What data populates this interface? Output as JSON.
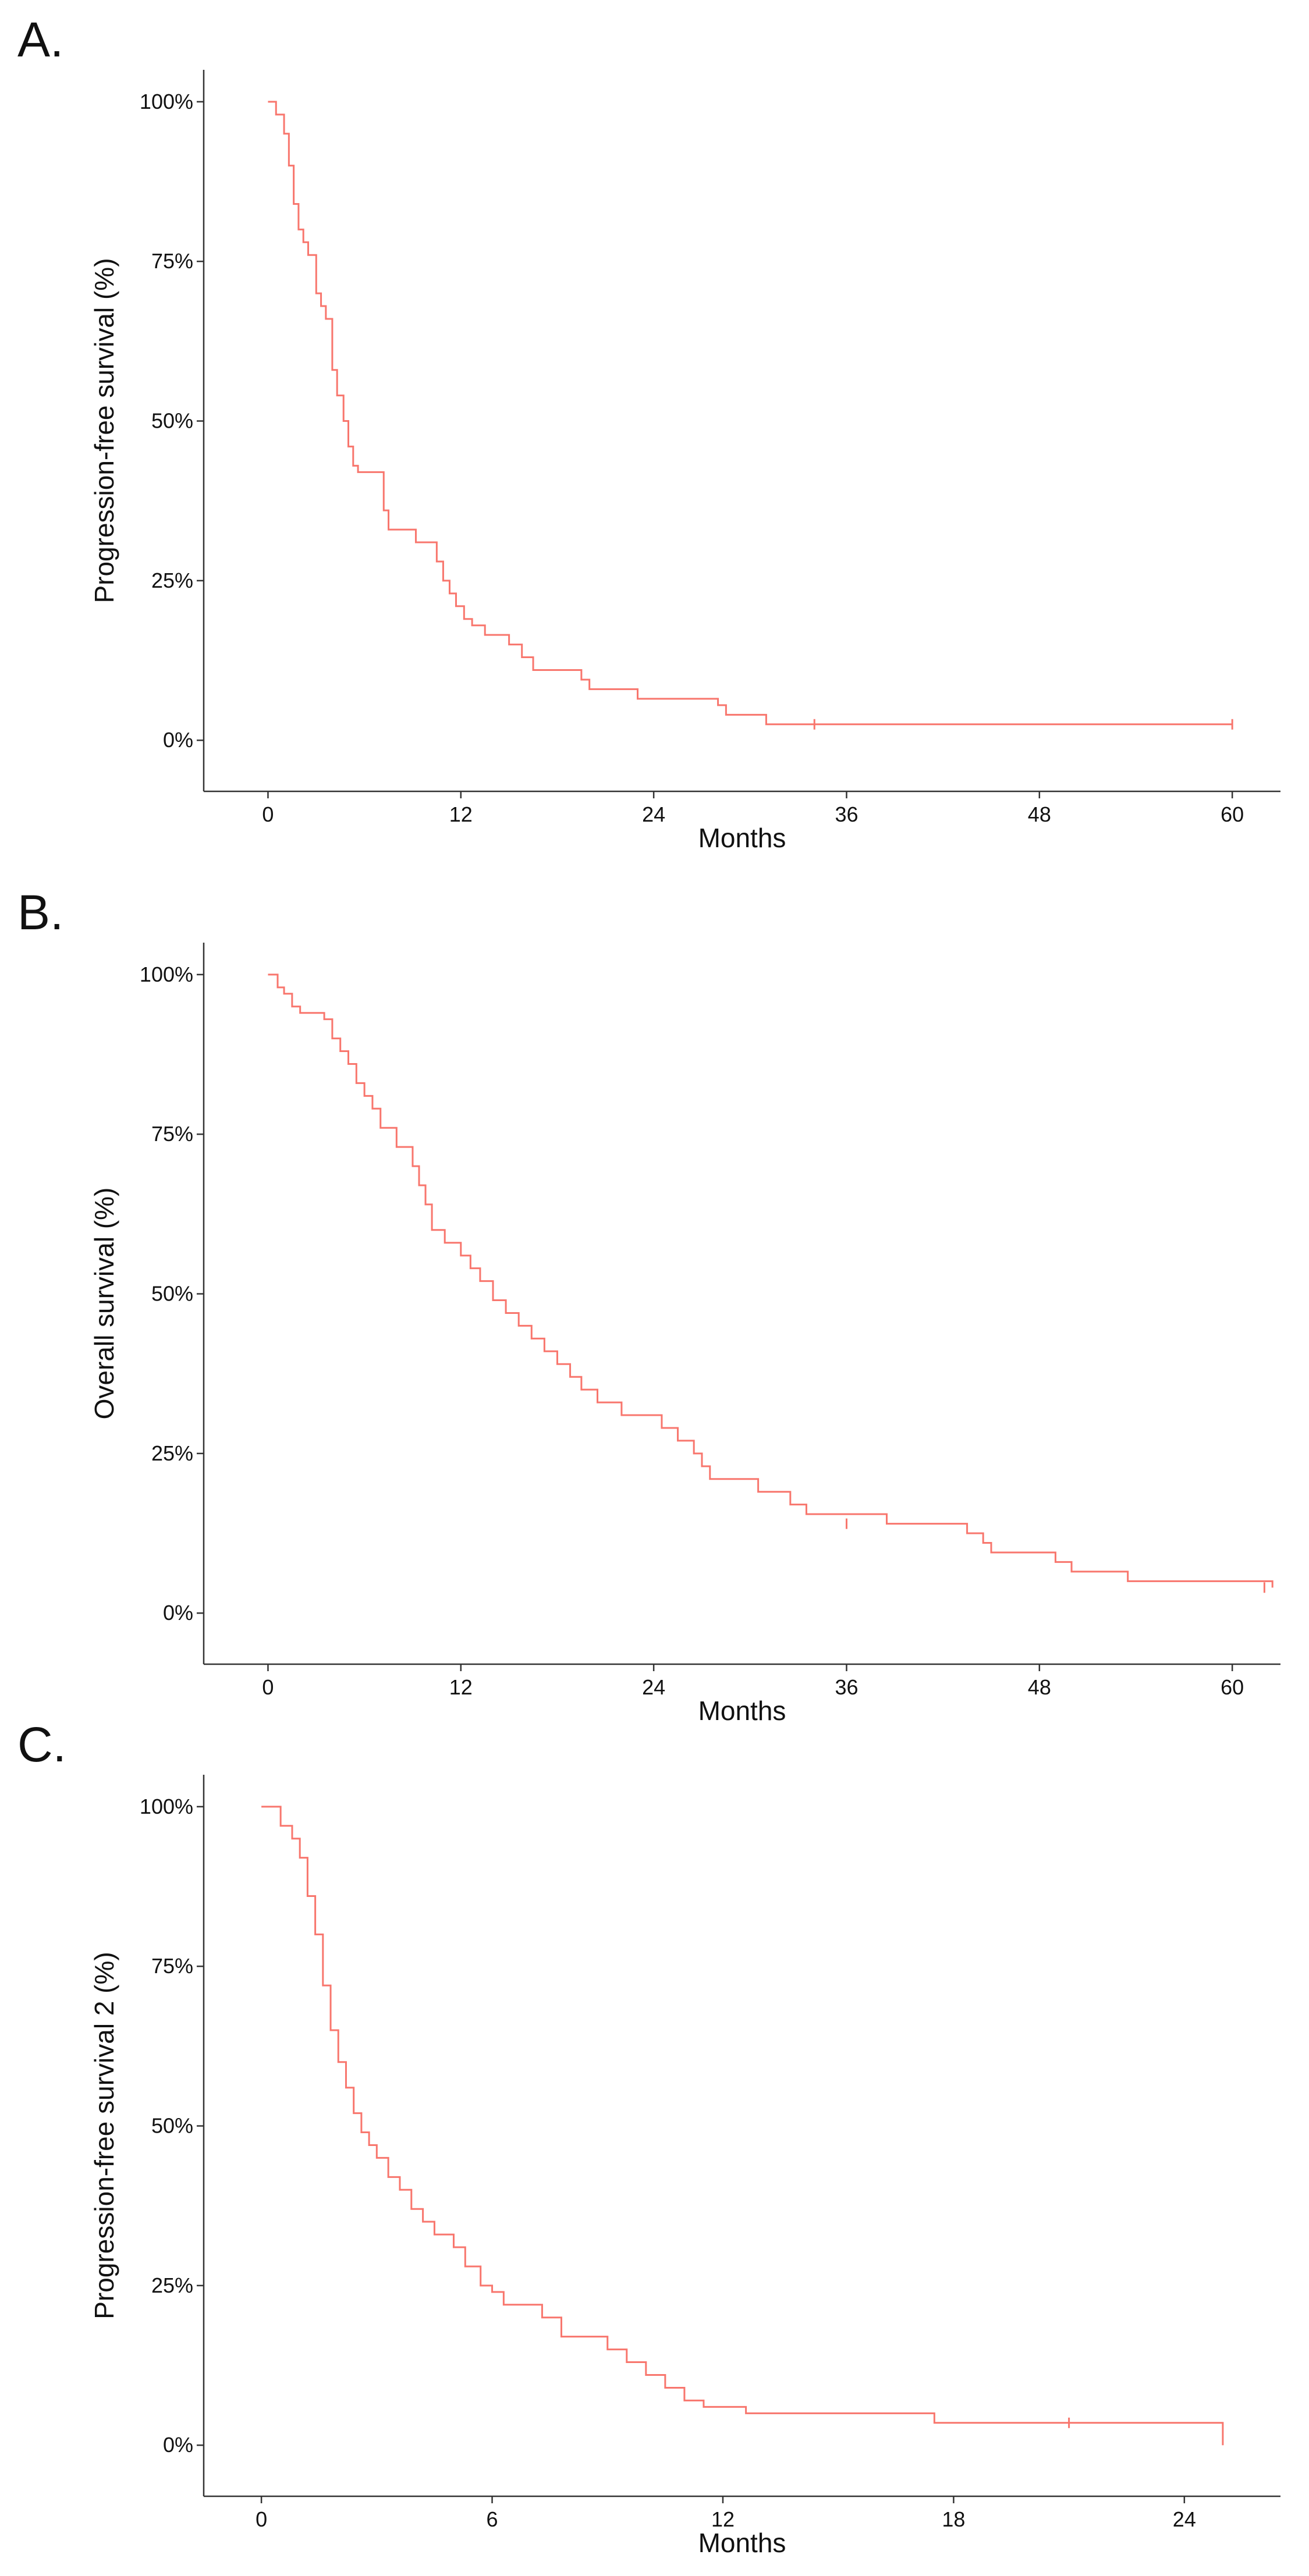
{
  "chart_data": [
    {
      "panel_label": "A.",
      "type": "line",
      "step": true,
      "title": "",
      "xlabel": "Months",
      "ylabel": "Progression-free survival (%)",
      "xlim": [
        -4,
        63
      ],
      "ylim": [
        -0.08,
        1.05
      ],
      "xticks": [
        0,
        12,
        24,
        36,
        48,
        60
      ],
      "xtick_labels": [
        "0",
        "12",
        "24",
        "36",
        "48",
        "60"
      ],
      "yticks": [
        0,
        0.25,
        0.5,
        0.75,
        1.0
      ],
      "ytick_labels": [
        "0%",
        "25%",
        "50%",
        "75%",
        "100%"
      ],
      "grid": false,
      "color": "#f8766d",
      "series": [
        {
          "name": "Progression-free survival",
          "x": [
            0,
            0.5,
            1,
            1.3,
            1.6,
            1.9,
            2.2,
            2.5,
            3,
            3.3,
            3.6,
            4,
            4.3,
            4.7,
            5,
            5.3,
            5.6,
            6,
            7.2,
            7.5,
            8,
            9.2,
            10.5,
            10.9,
            11.3,
            11.7,
            12.2,
            12.7,
            13.5,
            15,
            15.8,
            16.5,
            19.5,
            20,
            23,
            28,
            28.5,
            31,
            60
          ],
          "y": [
            1.0,
            0.98,
            0.95,
            0.9,
            0.84,
            0.8,
            0.78,
            0.76,
            0.7,
            0.68,
            0.66,
            0.58,
            0.54,
            0.5,
            0.46,
            0.43,
            0.42,
            0.42,
            0.36,
            0.33,
            0.33,
            0.31,
            0.28,
            0.25,
            0.23,
            0.21,
            0.19,
            0.18,
            0.165,
            0.15,
            0.13,
            0.11,
            0.095,
            0.08,
            0.065,
            0.055,
            0.04,
            0.025,
            0.025
          ],
          "censored": [
            {
              "x": 34,
              "y": 0.025
            },
            {
              "x": 60,
              "y": 0.025
            }
          ]
        }
      ]
    },
    {
      "panel_label": "B.",
      "type": "line",
      "step": true,
      "title": "",
      "xlabel": "Months",
      "ylabel": "Overall survival (%)",
      "xlim": [
        -4,
        63
      ],
      "ylim": [
        -0.08,
        1.05
      ],
      "xticks": [
        0,
        12,
        24,
        36,
        48,
        60
      ],
      "xtick_labels": [
        "0",
        "12",
        "24",
        "36",
        "48",
        "60"
      ],
      "yticks": [
        0,
        0.25,
        0.5,
        0.75,
        1.0
      ],
      "ytick_labels": [
        "0%",
        "25%",
        "50%",
        "75%",
        "100%"
      ],
      "grid": false,
      "color": "#f8766d",
      "series": [
        {
          "name": "Overall survival",
          "x": [
            0,
            0.6,
            1,
            1.5,
            2,
            3.5,
            4,
            4.5,
            5,
            5.5,
            6,
            6.5,
            7,
            8,
            9,
            9.4,
            9.8,
            10.2,
            11,
            12,
            12.6,
            13.2,
            14,
            14.8,
            15.6,
            16.4,
            17.2,
            18,
            18.8,
            19.5,
            20.5,
            22,
            24.5,
            25.5,
            26.5,
            27,
            27.5,
            30.5,
            32.5,
            33.5,
            38.5,
            43.5,
            44.5,
            45,
            49,
            50,
            53.5,
            62.5
          ],
          "y": [
            1.0,
            0.98,
            0.97,
            0.95,
            0.94,
            0.93,
            0.9,
            0.88,
            0.86,
            0.83,
            0.81,
            0.79,
            0.76,
            0.73,
            0.7,
            0.67,
            0.64,
            0.6,
            0.58,
            0.56,
            0.54,
            0.52,
            0.49,
            0.47,
            0.45,
            0.43,
            0.41,
            0.39,
            0.37,
            0.35,
            0.33,
            0.31,
            0.29,
            0.27,
            0.25,
            0.23,
            0.21,
            0.19,
            0.17,
            0.155,
            0.14,
            0.125,
            0.11,
            0.095,
            0.08,
            0.065,
            0.05,
            0.04
          ],
          "censored": [
            {
              "x": 36,
              "y": 0.14
            },
            {
              "x": 62,
              "y": 0.04
            }
          ]
        }
      ]
    },
    {
      "panel_label": "C.",
      "type": "line",
      "step": true,
      "title": "",
      "xlabel": "Months",
      "ylabel": "Progression-free survival 2 (%)",
      "xlim": [
        -1.5,
        26.5
      ],
      "ylim": [
        -0.08,
        1.05
      ],
      "xticks": [
        0,
        6,
        12,
        18,
        24
      ],
      "xtick_labels": [
        "0",
        "6",
        "12",
        "18",
        "24"
      ],
      "yticks": [
        0,
        0.25,
        0.5,
        0.75,
        1.0
      ],
      "ytick_labels": [
        "0%",
        "25%",
        "50%",
        "75%",
        "100%"
      ],
      "grid": false,
      "color": "#f8766d",
      "series": [
        {
          "name": "Progression-free survival 2",
          "x": [
            0,
            0.5,
            0.8,
            1.0,
            1.2,
            1.4,
            1.6,
            1.8,
            2.0,
            2.2,
            2.4,
            2.6,
            2.8,
            3.0,
            3.3,
            3.6,
            3.9,
            4.2,
            4.5,
            5.0,
            5.3,
            5.7,
            6.0,
            6.3,
            7.3,
            7.8,
            9.0,
            9.5,
            10.0,
            10.5,
            11.0,
            11.5,
            12.6,
            17.5,
            25.0
          ],
          "y": [
            1.0,
            0.97,
            0.95,
            0.92,
            0.86,
            0.8,
            0.72,
            0.65,
            0.6,
            0.56,
            0.52,
            0.49,
            0.47,
            0.45,
            0.42,
            0.4,
            0.37,
            0.35,
            0.33,
            0.31,
            0.28,
            0.25,
            0.24,
            0.22,
            0.2,
            0.17,
            0.15,
            0.13,
            0.11,
            0.09,
            0.07,
            0.06,
            0.05,
            0.035,
            0.0
          ],
          "censored": [
            {
              "x": 21,
              "y": 0.035
            }
          ]
        }
      ]
    }
  ]
}
